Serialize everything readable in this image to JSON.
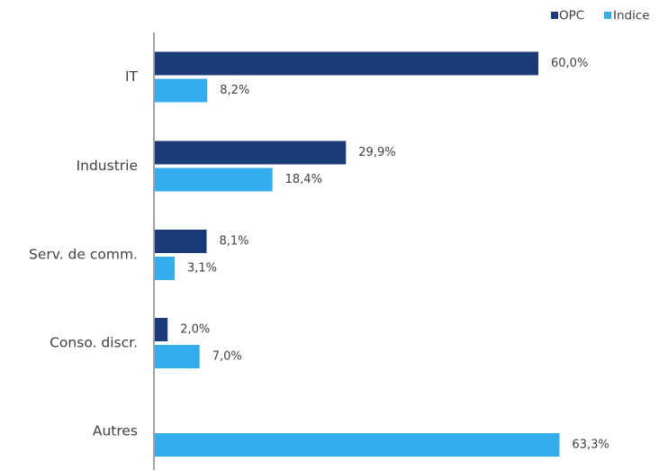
{
  "chart_data": {
    "type": "bar",
    "orientation": "horizontal",
    "categories": [
      "IT",
      "Industrie",
      "Serv. de comm.",
      "Conso. discr.",
      "Autres"
    ],
    "series": [
      {
        "name": "OPC",
        "color": "#1a3a7a",
        "values": [
          60.0,
          29.9,
          8.1,
          2.0,
          null
        ],
        "labels": [
          "60,0%",
          "29,9%",
          "8,1%",
          "2,0%",
          ""
        ]
      },
      {
        "name": "Indice",
        "color": "#33adee",
        "values": [
          8.2,
          18.4,
          3.1,
          7.0,
          63.3
        ],
        "labels": [
          "8,2%",
          "18,4%",
          "3,1%",
          "7,0%",
          "63,3%"
        ]
      }
    ],
    "xlim": [
      0,
      66
    ],
    "legend_position": "top-right",
    "grid": false
  }
}
